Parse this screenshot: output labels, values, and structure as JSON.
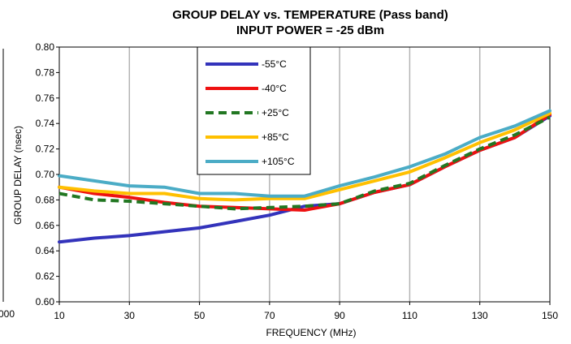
{
  "left_fragment": {
    "tick_label": "000"
  },
  "chart_data": {
    "type": "line",
    "title": "GROUP DELAY vs. TEMPERATURE (Pass band)",
    "subtitle": "INPUT POWER =  -25 dBm",
    "xlabel": "FREQUENCY (MHz)",
    "ylabel": "GROUP DELAY (nsec)",
    "xlim": [
      10,
      150
    ],
    "ylim": [
      0.6,
      0.8
    ],
    "x_ticks": [
      "10",
      "30",
      "50",
      "70",
      "90",
      "110",
      "130",
      "150"
    ],
    "y_ticks": [
      "0.60",
      "0.62",
      "0.64",
      "0.66",
      "0.68",
      "0.70",
      "0.72",
      "0.74",
      "0.76",
      "0.78",
      "0.80"
    ],
    "x": [
      10,
      20,
      30,
      40,
      50,
      60,
      70,
      80,
      90,
      100,
      110,
      120,
      130,
      140,
      150
    ],
    "grid": "vertical",
    "legend_position": "top-center",
    "series": [
      {
        "name": "-55°C",
        "color": "#3333bb",
        "dash": false,
        "values": [
          0.647,
          0.65,
          0.652,
          0.655,
          0.658,
          0.663,
          0.668,
          0.675,
          0.677,
          0.686,
          0.692,
          0.706,
          0.719,
          0.729,
          0.746
        ]
      },
      {
        "name": "-40°C",
        "color": "#ee1111",
        "dash": false,
        "values": [
          0.69,
          0.685,
          0.682,
          0.678,
          0.675,
          0.674,
          0.673,
          0.672,
          0.677,
          0.686,
          0.692,
          0.706,
          0.719,
          0.729,
          0.747
        ]
      },
      {
        "name": "+25°C",
        "color": "#227722",
        "dash": true,
        "values": [
          0.685,
          0.68,
          0.679,
          0.677,
          0.675,
          0.673,
          0.674,
          0.675,
          0.677,
          0.687,
          0.693,
          0.707,
          0.72,
          0.731,
          0.745
        ]
      },
      {
        "name": "+85°C",
        "color": "#ffc000",
        "dash": false,
        "values": [
          0.69,
          0.687,
          0.685,
          0.685,
          0.681,
          0.68,
          0.681,
          0.681,
          0.688,
          0.695,
          0.702,
          0.713,
          0.725,
          0.735,
          0.748
        ]
      },
      {
        "name": "+105°C",
        "color": "#4bacc6",
        "dash": false,
        "values": [
          0.699,
          0.695,
          0.691,
          0.69,
          0.685,
          0.685,
          0.683,
          0.683,
          0.691,
          0.698,
          0.706,
          0.716,
          0.729,
          0.738,
          0.75
        ]
      }
    ]
  }
}
